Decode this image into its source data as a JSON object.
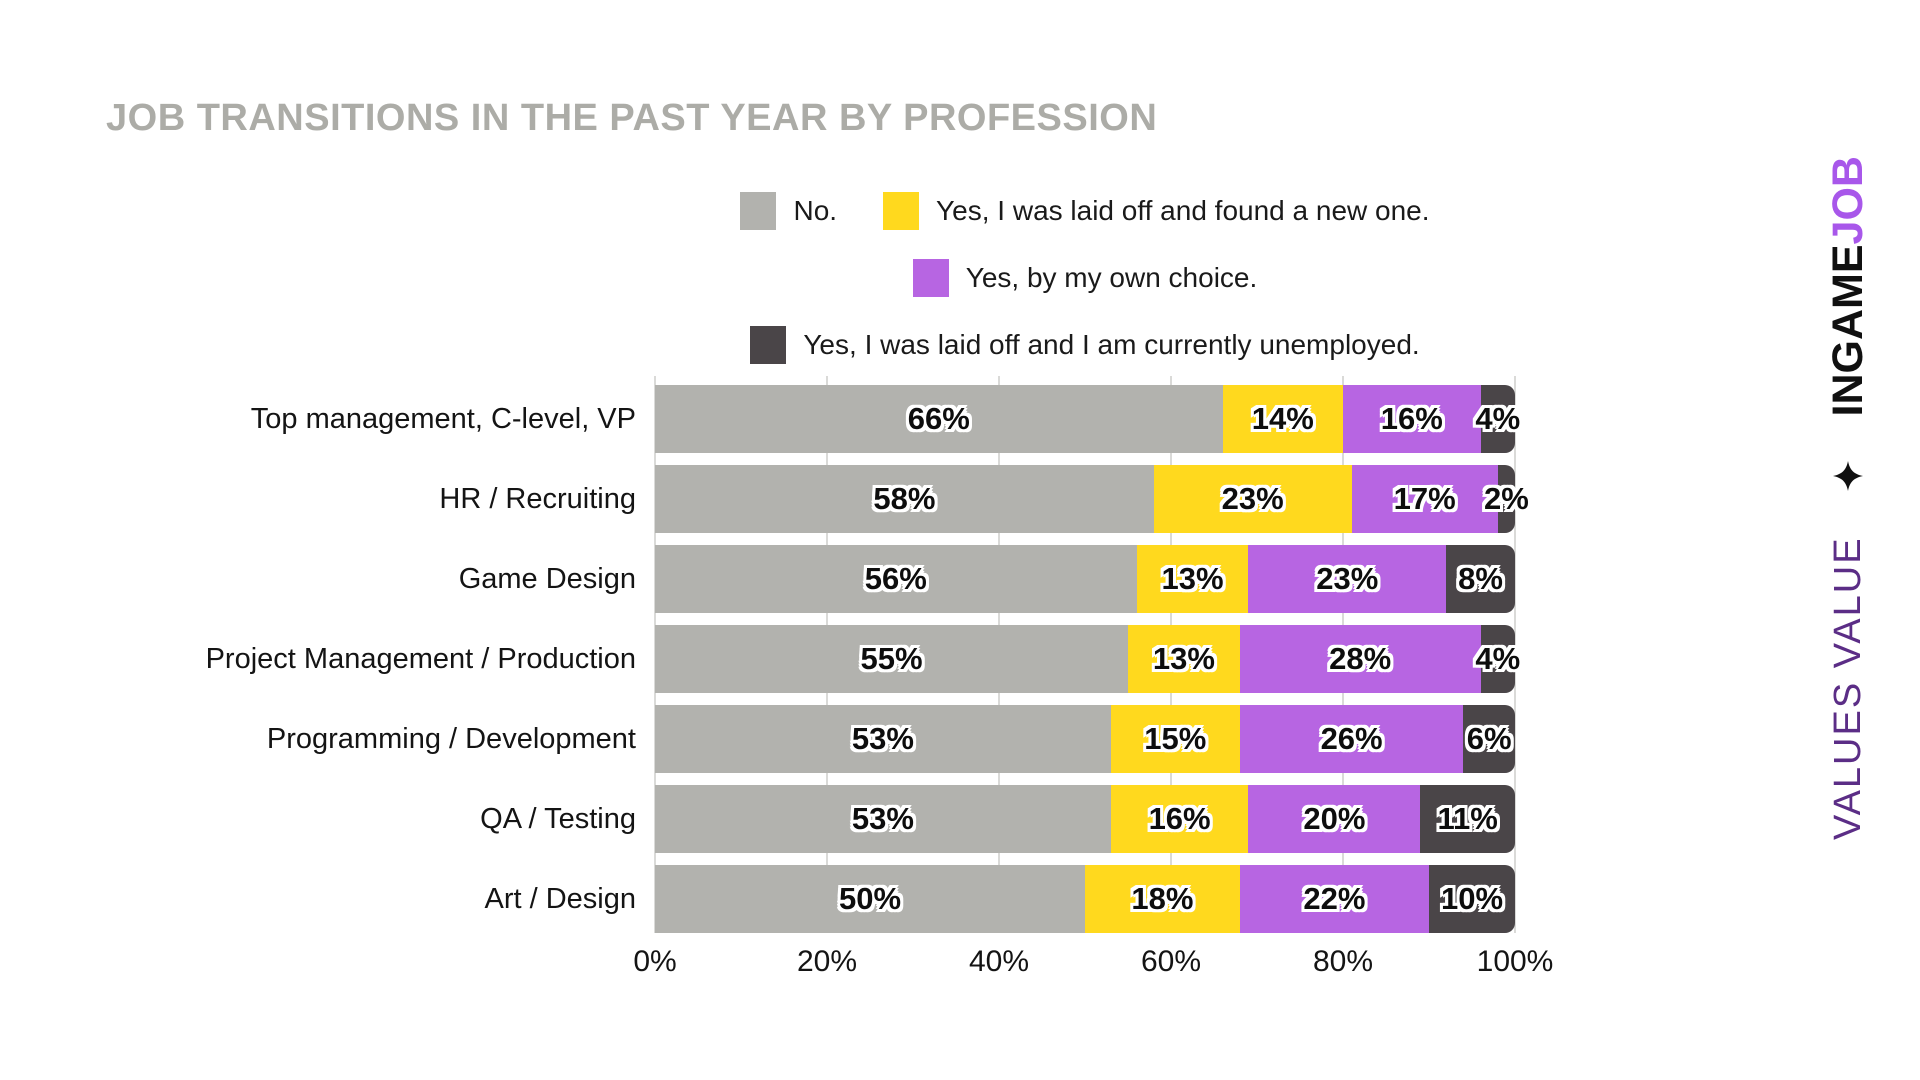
{
  "title": "JOB TRANSITIONS IN THE PAST YEAR BY PROFESSION",
  "colors": {
    "title": "#ACACA7",
    "grid": "#DADAD8",
    "no": "#B2B2AE",
    "laid_off_new_job": "#FFD91E",
    "own_choice": "#B765E2",
    "laid_off_unemployed": "#4A4548"
  },
  "chart_data": {
    "type": "bar",
    "orientation": "horizontal",
    "stacked": true,
    "grid": "vertical, light gray, every 20%",
    "legend_position": "top-center, three rows",
    "categories": [
      "Top management, C-level, VP",
      "HR / Recruiting",
      "Game Design",
      "Project Management / Production",
      "Programming / Development",
      "QA / Testing",
      "Art / Design"
    ],
    "series": [
      {
        "name": "No.",
        "color": "#B2B2AE",
        "values": [
          66,
          58,
          56,
          55,
          53,
          53,
          50
        ]
      },
      {
        "name": "Yes, I was laid off and found a new one.",
        "color": "#FFD91E",
        "values": [
          14,
          23,
          13,
          13,
          15,
          16,
          18
        ]
      },
      {
        "name": "Yes, by my own choice.",
        "color": "#B765E2",
        "values": [
          16,
          17,
          23,
          28,
          26,
          20,
          22
        ]
      },
      {
        "name": "Yes, I was laid off and I am currently unemployed.",
        "color": "#4A4548",
        "values": [
          4,
          2,
          8,
          4,
          6,
          11,
          10
        ]
      }
    ],
    "legend_layout": [
      [
        0,
        1
      ],
      [
        2
      ],
      [
        3
      ]
    ],
    "x_ticks": [
      "0%",
      "20%",
      "40%",
      "60%",
      "80%",
      "100%"
    ],
    "xlim": [
      0,
      100
    ],
    "value_suffix": "%"
  },
  "branding": {
    "tagline": "VALUES VALUE",
    "star_icon": "four-pointed-star",
    "wordmark_primary": "INGAME",
    "wordmark_accent": "JOB",
    "tagline_color": "#5B2D86",
    "accent_color": "#A857EA",
    "primary_color": "#101010"
  }
}
